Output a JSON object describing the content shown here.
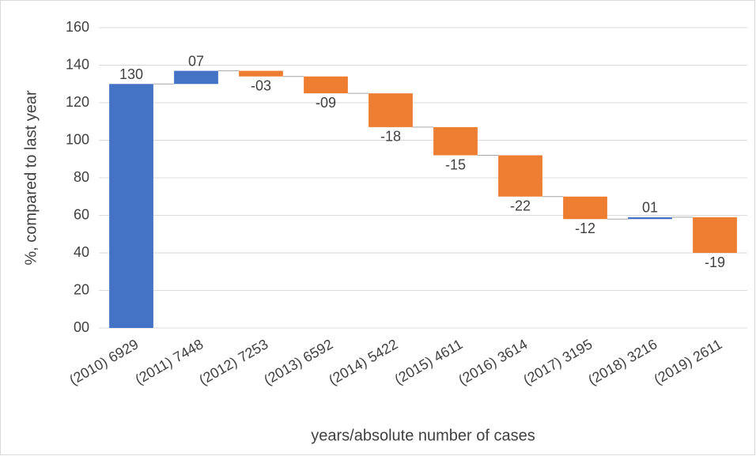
{
  "chart_data": {
    "type": "waterfall",
    "categories": [
      "(2010) 6929",
      "(2011) 7448",
      "(2012) 7253",
      "(2013) 6592",
      "(2014) 5422",
      "(2015) 4611",
      "(2016) 3614",
      "(2017) 3195",
      "(2018) 3216",
      "(2019) 2611"
    ],
    "values": [
      130,
      7,
      -3,
      -9,
      -18,
      -15,
      -22,
      -12,
      1,
      -19
    ],
    "value_labels": [
      "130",
      "07",
      "-03",
      "-09",
      "-18",
      "-15",
      "-22",
      "-12",
      "01",
      "-19"
    ],
    "colors": {
      "increase": "#4472c4",
      "decrease": "#ed7d31"
    },
    "ylabel": "%, compared to last year",
    "xlabel": "years/absolute number of cases",
    "ylim": [
      0,
      160
    ],
    "yticks": [
      {
        "value": 0,
        "label": "00"
      },
      20,
      40,
      60,
      80,
      100,
      120,
      140,
      160
    ],
    "grid": true
  }
}
